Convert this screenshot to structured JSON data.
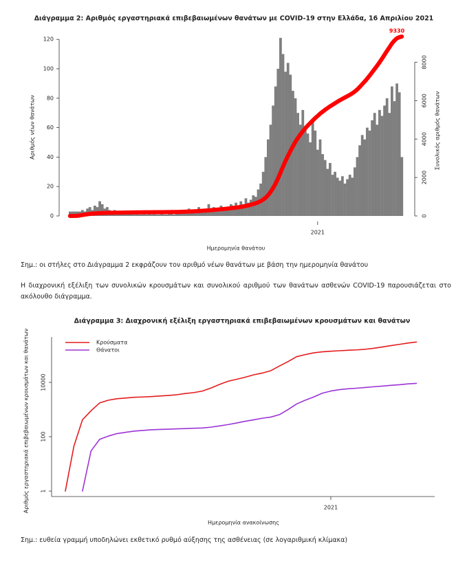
{
  "chart_data": [
    {
      "type": "bar",
      "title": "Διάγραμμα 2: Αριθμός εργαστηριακά επιβεβαιωμένων θανάτων με COVID-19 στην Ελλάδα, 16 Απριλίου 2021",
      "x_label": "Ημερομηνία θανάτου",
      "y_label": "Αριθμός νέων θανάτων",
      "y2_label": "Συνολικός αριθμός θανάτων",
      "categories": [
        null,
        null,
        null,
        null,
        null,
        null,
        null,
        null,
        null,
        null,
        null,
        null,
        null,
        null,
        null,
        null,
        null,
        null,
        null,
        null,
        null,
        null,
        null,
        null,
        null,
        null,
        null,
        null,
        null,
        null,
        null,
        null,
        null,
        null,
        null,
        null,
        null,
        null,
        null,
        null,
        null,
        null,
        null,
        null,
        null,
        null,
        null,
        null,
        null,
        null,
        null,
        null,
        null,
        null,
        null,
        null,
        null,
        null,
        null,
        null,
        null,
        null,
        null,
        null,
        null,
        null,
        null,
        null,
        null,
        null,
        null,
        null,
        null,
        null,
        null,
        null,
        null,
        null,
        null,
        null,
        null,
        null,
        null,
        null,
        null,
        null,
        null,
        null,
        null,
        null,
        null,
        null,
        null,
        null,
        null,
        null,
        null,
        null,
        null,
        null,
        "2021",
        null,
        null,
        null,
        null,
        null,
        null,
        null,
        null,
        null,
        null,
        null,
        null,
        null,
        null,
        null,
        null,
        null,
        null,
        null,
        null,
        null,
        null,
        null,
        null,
        null,
        null,
        null,
        null,
        null,
        null,
        null,
        null,
        null,
        null
      ],
      "series": [
        {
          "color": "#7f7f7f",
          "values": [
            3,
            3,
            3,
            3,
            3,
            4,
            3,
            5,
            6,
            4,
            7,
            6,
            10,
            8,
            5,
            6,
            4,
            3,
            4,
            2,
            3,
            2,
            2,
            1,
            2,
            3,
            1,
            2,
            1,
            1,
            2,
            1,
            2,
            1,
            2,
            1,
            1,
            2,
            1,
            1,
            3,
            2,
            1,
            2,
            3,
            4,
            2,
            3,
            5,
            3,
            4,
            4,
            6,
            4,
            3,
            5,
            8,
            4,
            6,
            5,
            3,
            7,
            5,
            6,
            4,
            8,
            7,
            9,
            6,
            10,
            8,
            12,
            9,
            11,
            14,
            13,
            18,
            22,
            30,
            40,
            52,
            62,
            75,
            88,
            100,
            121,
            110,
            98,
            104,
            96,
            85,
            80,
            70,
            62,
            72,
            60,
            56,
            50,
            64,
            58,
            45,
            52,
            42,
            38,
            32,
            36,
            28,
            30,
            26,
            24,
            27,
            22,
            25,
            28,
            26,
            33,
            40,
            48,
            55,
            52,
            60,
            58,
            65,
            70,
            62,
            72,
            68,
            75,
            80,
            70,
            88,
            78,
            90,
            84,
            40
          ]
        },
        {
          "type": "line",
          "axis": "y2",
          "color": "#ff0000",
          "values": [
            0,
            1,
            3,
            10,
            26,
            50,
            70,
            90,
            105,
            120,
            130,
            140,
            146,
            150,
            155,
            160,
            163,
            166,
            168,
            170,
            172,
            174,
            176,
            178,
            180,
            182,
            184,
            186,
            188,
            190,
            191,
            192,
            193,
            194,
            195,
            196,
            197,
            198,
            199,
            200,
            202,
            204,
            206,
            208,
            210,
            214,
            218,
            222,
            228,
            234,
            240,
            248,
            256,
            264,
            272,
            280,
            290,
            300,
            312,
            324,
            336,
            348,
            360,
            374,
            388,
            402,
            416,
            434,
            452,
            472,
            494,
            520,
            548,
            580,
            620,
            660,
            710,
            770,
            850,
            950,
            1080,
            1250,
            1450,
            1680,
            1950,
            2250,
            2560,
            2850,
            3120,
            3380,
            3620,
            3850,
            4050,
            4230,
            4400,
            4560,
            4700,
            4830,
            4960,
            5090,
            5200,
            5320,
            5420,
            5520,
            5610,
            5700,
            5780,
            5860,
            5940,
            6020,
            6090,
            6160,
            6230,
            6300,
            6380,
            6470,
            6580,
            6710,
            6850,
            6990,
            7140,
            7300,
            7470,
            7640,
            7810,
            7990,
            8180,
            8380,
            8580,
            8770,
            8970,
            9120,
            9240,
            9300,
            9330
          ]
        }
      ],
      "ylim": [
        0,
        125
      ],
      "yticks": [
        0,
        20,
        40,
        60,
        80,
        100,
        120
      ],
      "y2lim": [
        0,
        9570
      ],
      "y2ticks": [
        0,
        2000,
        4000,
        6000,
        8000
      ]
    },
    {
      "type": "line",
      "title": "Διάγραμμα 3: Διαχρονική εξέλιξη εργαστηριακά επιβεβαιωμένων κρουσμάτων και θανάτων",
      "x_label": "Ημερομηνία ανακοίνωσης",
      "y_label": "Αριθμός εργαστηριακά επιβεβαιωμένων κρουσμάτων και θανάτων",
      "categories": [
        null,
        null,
        null,
        null,
        null,
        null,
        null,
        null,
        null,
        null,
        null,
        null,
        null,
        null,
        null,
        null,
        null,
        null,
        null,
        null,
        null,
        null,
        null,
        null,
        null,
        null,
        null,
        null,
        null,
        null,
        null,
        "2021",
        null,
        null,
        null,
        null,
        null,
        null,
        null,
        null,
        null,
        null
      ],
      "series": [
        {
          "name": "Κρούσματα",
          "color": "#e41a1c",
          "values": [
            1,
            45,
            420,
            900,
            1750,
            2200,
            2500,
            2650,
            2830,
            2900,
            3000,
            3150,
            3300,
            3500,
            3900,
            4200,
            4800,
            6200,
            8400,
            11000,
            13000,
            15500,
            19000,
            22000,
            27000,
            40000,
            58000,
            88000,
            105000,
            122000,
            133000,
            140000,
            146000,
            152000,
            157000,
            165000,
            180000,
            200000,
            225000,
            250000,
            280000,
            305000
          ]
        },
        {
          "name": "Θάνατοι",
          "color": "#9c33d6",
          "values": [
            null,
            null,
            1,
            30,
            80,
            105,
            130,
            145,
            160,
            170,
            180,
            185,
            190,
            195,
            200,
            205,
            210,
            225,
            250,
            280,
            320,
            370,
            420,
            480,
            530,
            650,
            1000,
            1600,
            2200,
            2900,
            4000,
            4800,
            5400,
            5800,
            6100,
            6500,
            6900,
            7300,
            7800,
            8200,
            8800,
            9200
          ]
        }
      ],
      "log_y": true,
      "legend": "top-left",
      "ylim": [
        0.63,
        468000
      ],
      "yticks": [
        1,
        100,
        10000
      ]
    }
  ],
  "document": {
    "note_1": "Σημ.: οι στήλες στο Διάγραμμα 2 εκφράζουν τον αριθμό νέων θανάτων με βάση την ημερομηνία θανάτου",
    "paragraph": "Η διαχρονική εξέλιξη των συνολικών κρουσμάτων και συνολικού αριθμού των θανάτων ασθενών COVID-19 παρουσιάζεται στο ακόλουθο διάγραμμα.",
    "note_2": "Σημ.: ευθεία γραμμή υποδηλώνει εκθετικό ρυθμό αύξησης της ασθένειας (σε λογαριθμική κλίμακα)"
  }
}
